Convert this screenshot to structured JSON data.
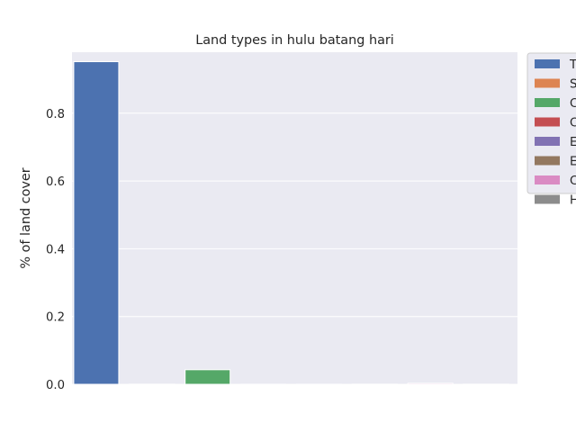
{
  "chart_data": {
    "type": "bar",
    "title": "Land types in hulu batang hari",
    "xlabel": "",
    "ylabel": "% of land cover",
    "ylim": [
      0,
      0.98
    ],
    "yticks": [
      "0.0",
      "0.2",
      "0.4",
      "0.6",
      "0.8"
    ],
    "grid": true,
    "legend_position": "outside-right",
    "series": [
      {
        "name": "T",
        "value": 0.952,
        "color": "#4c72b0"
      },
      {
        "name": "S",
        "value": 0.0005,
        "color": "#dd8452"
      },
      {
        "name": "C",
        "value": 0.043,
        "color": "#55a868"
      },
      {
        "name": "C",
        "value": 0.0003,
        "color": "#c44e52"
      },
      {
        "name": "E",
        "value": 0.0002,
        "color": "#8172b3"
      },
      {
        "name": "E",
        "value": 0.0005,
        "color": "#937860"
      },
      {
        "name": "C",
        "value": 0.003,
        "color": "#da8bc3"
      },
      {
        "name": "H",
        "value": 0.0005,
        "color": "#8c8c8c"
      }
    ]
  },
  "colors": {
    "plot_background": "#eaeaf2",
    "grid": "#ffffff"
  }
}
